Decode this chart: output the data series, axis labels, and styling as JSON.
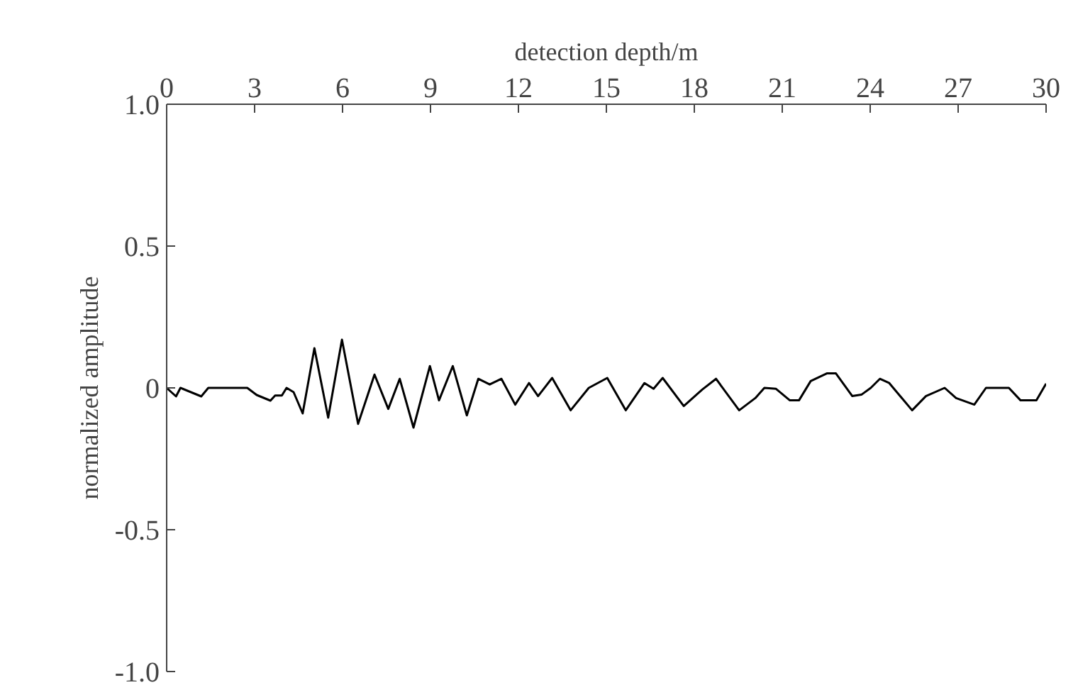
{
  "chart_data": {
    "type": "line",
    "xlabel": "detection depth/m",
    "ylabel": "normalized amplitude",
    "xlim": [
      0,
      30
    ],
    "xticks": [
      0,
      3,
      6,
      9,
      12,
      15,
      18,
      21,
      24,
      27,
      30
    ],
    "ylim": [
      -1,
      1
    ],
    "yticks": [
      {
        "value": -1,
        "label": "-1.0"
      },
      -0.5,
      0,
      0.5,
      {
        "value": 1,
        "label": "1.0"
      }
    ],
    "grid": false,
    "marker": "none",
    "line_style": "solid",
    "series": [
      {
        "color": "#000000",
        "x": [
          0,
          0.32,
          0.47,
          1.18,
          1.42,
          2.75,
          3.07,
          3.54,
          3.7,
          3.93,
          4.09,
          4.33,
          4.64,
          5.04,
          5.51,
          5.98,
          6.53,
          7.09,
          7.56,
          7.95,
          8.42,
          8.98,
          9.29,
          9.76,
          10.24,
          10.63,
          11.02,
          11.42,
          11.89,
          12.36,
          12.67,
          13.15,
          13.78,
          14.4,
          15.03,
          15.66,
          16.3,
          16.61,
          16.92,
          17.64,
          18.27,
          18.74,
          19.53,
          20.08,
          20.39,
          20.78,
          21.26,
          21.57,
          21.97,
          22.52,
          22.83,
          23.39,
          23.7,
          24.02,
          24.33,
          24.65,
          25.43,
          25.9,
          26.54,
          26.93,
          27.55,
          27.95,
          28.73,
          29.13,
          29.67,
          30
        ],
        "values": [
          0,
          -0.03,
          0,
          -0.03,
          0,
          0,
          -0.025,
          -0.045,
          -0.027,
          -0.027,
          0,
          -0.015,
          -0.09,
          0.14,
          -0.105,
          0.17,
          -0.127,
          0.047,
          -0.074,
          0.032,
          -0.14,
          0.077,
          -0.044,
          0.077,
          -0.097,
          0.032,
          0.012,
          0.032,
          -0.059,
          0.017,
          -0.029,
          0.035,
          -0.079,
          0,
          0.035,
          -0.079,
          0.017,
          -0.003,
          0.035,
          -0.064,
          -0.006,
          0.032,
          -0.079,
          -0.036,
          0,
          -0.003,
          -0.044,
          -0.044,
          0.024,
          0.051,
          0.051,
          -0.029,
          -0.024,
          0,
          0.032,
          0.017,
          -0.079,
          -0.029,
          0,
          -0.036,
          -0.059,
          0,
          0,
          -0.044,
          -0.044,
          0.015
        ]
      }
    ]
  }
}
